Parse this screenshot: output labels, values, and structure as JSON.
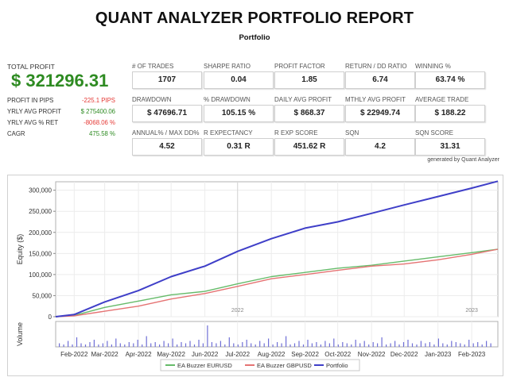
{
  "report": {
    "title": "QUANT ANALYZER PORTFOLIO REPORT",
    "subtitle": "Portfolio",
    "generated_by": "generated by Quant Analyzer"
  },
  "summary": {
    "total_profit_label": "TOTAL PROFIT",
    "total_profit_value": "$ 321296.31",
    "rows": [
      {
        "label": "PROFIT IN PIPS",
        "value": "-225.1 PIPS",
        "color": "#e53935"
      },
      {
        "label": "YRLY AVG PROFIT",
        "value": "$ 275400.06",
        "color": "#2e8b22"
      },
      {
        "label": "YRLY AVG % RET",
        "value": "-8068.06 %",
        "color": "#e53935"
      },
      {
        "label": "CAGR",
        "value": "475.58 %",
        "color": "#2e8b22"
      }
    ]
  },
  "metrics": [
    {
      "label": "# OF TRADES",
      "value": "1707"
    },
    {
      "label": "SHARPE RATIO",
      "value": "0.04"
    },
    {
      "label": "PROFIT FACTOR",
      "value": "1.85"
    },
    {
      "label": "RETURN / DD RATIO",
      "value": "6.74"
    },
    {
      "label": "WINNING %",
      "value": "63.74 %"
    },
    {
      "label": "DRAWDOWN",
      "value": "$ 47696.71"
    },
    {
      "label": "% DRAWDOWN",
      "value": "105.15 %"
    },
    {
      "label": "DAILY AVG PROFIT",
      "value": "$ 868.37"
    },
    {
      "label": "MTHLY AVG PROFIT",
      "value": "$ 22949.74"
    },
    {
      "label": "AVERAGE TRADE",
      "value": "$ 188.22"
    },
    {
      "label": "ANNUAL% / MAX DD%",
      "value": "4.52"
    },
    {
      "label": "R EXPECTANCY",
      "value": "0.31 R"
    },
    {
      "label": "R EXP SCORE",
      "value": "451.62 R"
    },
    {
      "label": "SQN",
      "value": "4.2"
    },
    {
      "label": "SQN SCORE",
      "value": "31.31"
    }
  ],
  "chart_data": {
    "type": "line",
    "ylabel": "Equity ($)",
    "volume_label": "Volume",
    "ylim": [
      0,
      320000
    ],
    "y_ticks": [
      0,
      50000,
      100000,
      150000,
      200000,
      250000,
      300000
    ],
    "y_tick_labels": [
      "0",
      "50,000",
      "100,000",
      "150,000",
      "200,000",
      "250,000",
      "300,000"
    ],
    "x_ticks": [
      "Feb-2022",
      "Mar-2022",
      "Apr-2022",
      "May-2022",
      "Jun-2022",
      "Jul-2022",
      "Aug-2022",
      "Sep-2022",
      "Oct-2022",
      "Nov-2022",
      "Dec-2022",
      "Jan-2023",
      "Feb-2023"
    ],
    "x_range": [
      "2022-01-15",
      "2023-02-25"
    ],
    "x": [
      "2022-01-15",
      "2022-02-01",
      "2022-03-01",
      "2022-04-01",
      "2022-05-01",
      "2022-06-01",
      "2022-07-01",
      "2022-08-01",
      "2022-09-01",
      "2022-10-01",
      "2022-11-01",
      "2022-12-01",
      "2023-01-01",
      "2023-02-01",
      "2023-02-25"
    ],
    "year_markers": [
      {
        "label": "2022",
        "at": "2022-07-01"
      },
      {
        "label": "2023",
        "at": "2023-02-01"
      }
    ],
    "grid": true,
    "legend_position": "bottom",
    "series": [
      {
        "name": "EA Buzzer EURUSD",
        "color": "#66bb6a",
        "values": [
          0,
          3000,
          22000,
          37000,
          52000,
          60000,
          78000,
          95000,
          105000,
          115000,
          122000,
          132000,
          142000,
          152000,
          160000
        ]
      },
      {
        "name": "EA Buzzer GBPUSD",
        "color": "#e57373",
        "values": [
          0,
          2000,
          13000,
          25000,
          42000,
          55000,
          72000,
          90000,
          100000,
          110000,
          120000,
          125000,
          135000,
          148000,
          160000
        ]
      },
      {
        "name": "Portfolio",
        "color": "#3f3fc8",
        "values": [
          0,
          5000,
          35000,
          62000,
          95000,
          120000,
          155000,
          185000,
          210000,
          225000,
          245000,
          265000,
          285000,
          305000,
          321296
        ]
      }
    ],
    "volume": {
      "ylim": [
        0,
        20
      ],
      "values": [
        3,
        2,
        5,
        2,
        8,
        3,
        2,
        4,
        6,
        2,
        3,
        5,
        2,
        7,
        3,
        2,
        4,
        3,
        6,
        2,
        9,
        3,
        4,
        2,
        5,
        3,
        7,
        2,
        4,
        3,
        5,
        2,
        6,
        3,
        18,
        4,
        3,
        5,
        2,
        8,
        3,
        2,
        4,
        6,
        3,
        2,
        5,
        3,
        7,
        2,
        4,
        3,
        9,
        2,
        3,
        5,
        2,
        6,
        3,
        4,
        2,
        5,
        3,
        7,
        2,
        4,
        3,
        2,
        6,
        3,
        5,
        2,
        4,
        3,
        8,
        2,
        3,
        5,
        2,
        4,
        6,
        3,
        2,
        5,
        3,
        4,
        2,
        7,
        3,
        2,
        5,
        4,
        3,
        2,
        6,
        3,
        4,
        2,
        5,
        3
      ]
    }
  }
}
